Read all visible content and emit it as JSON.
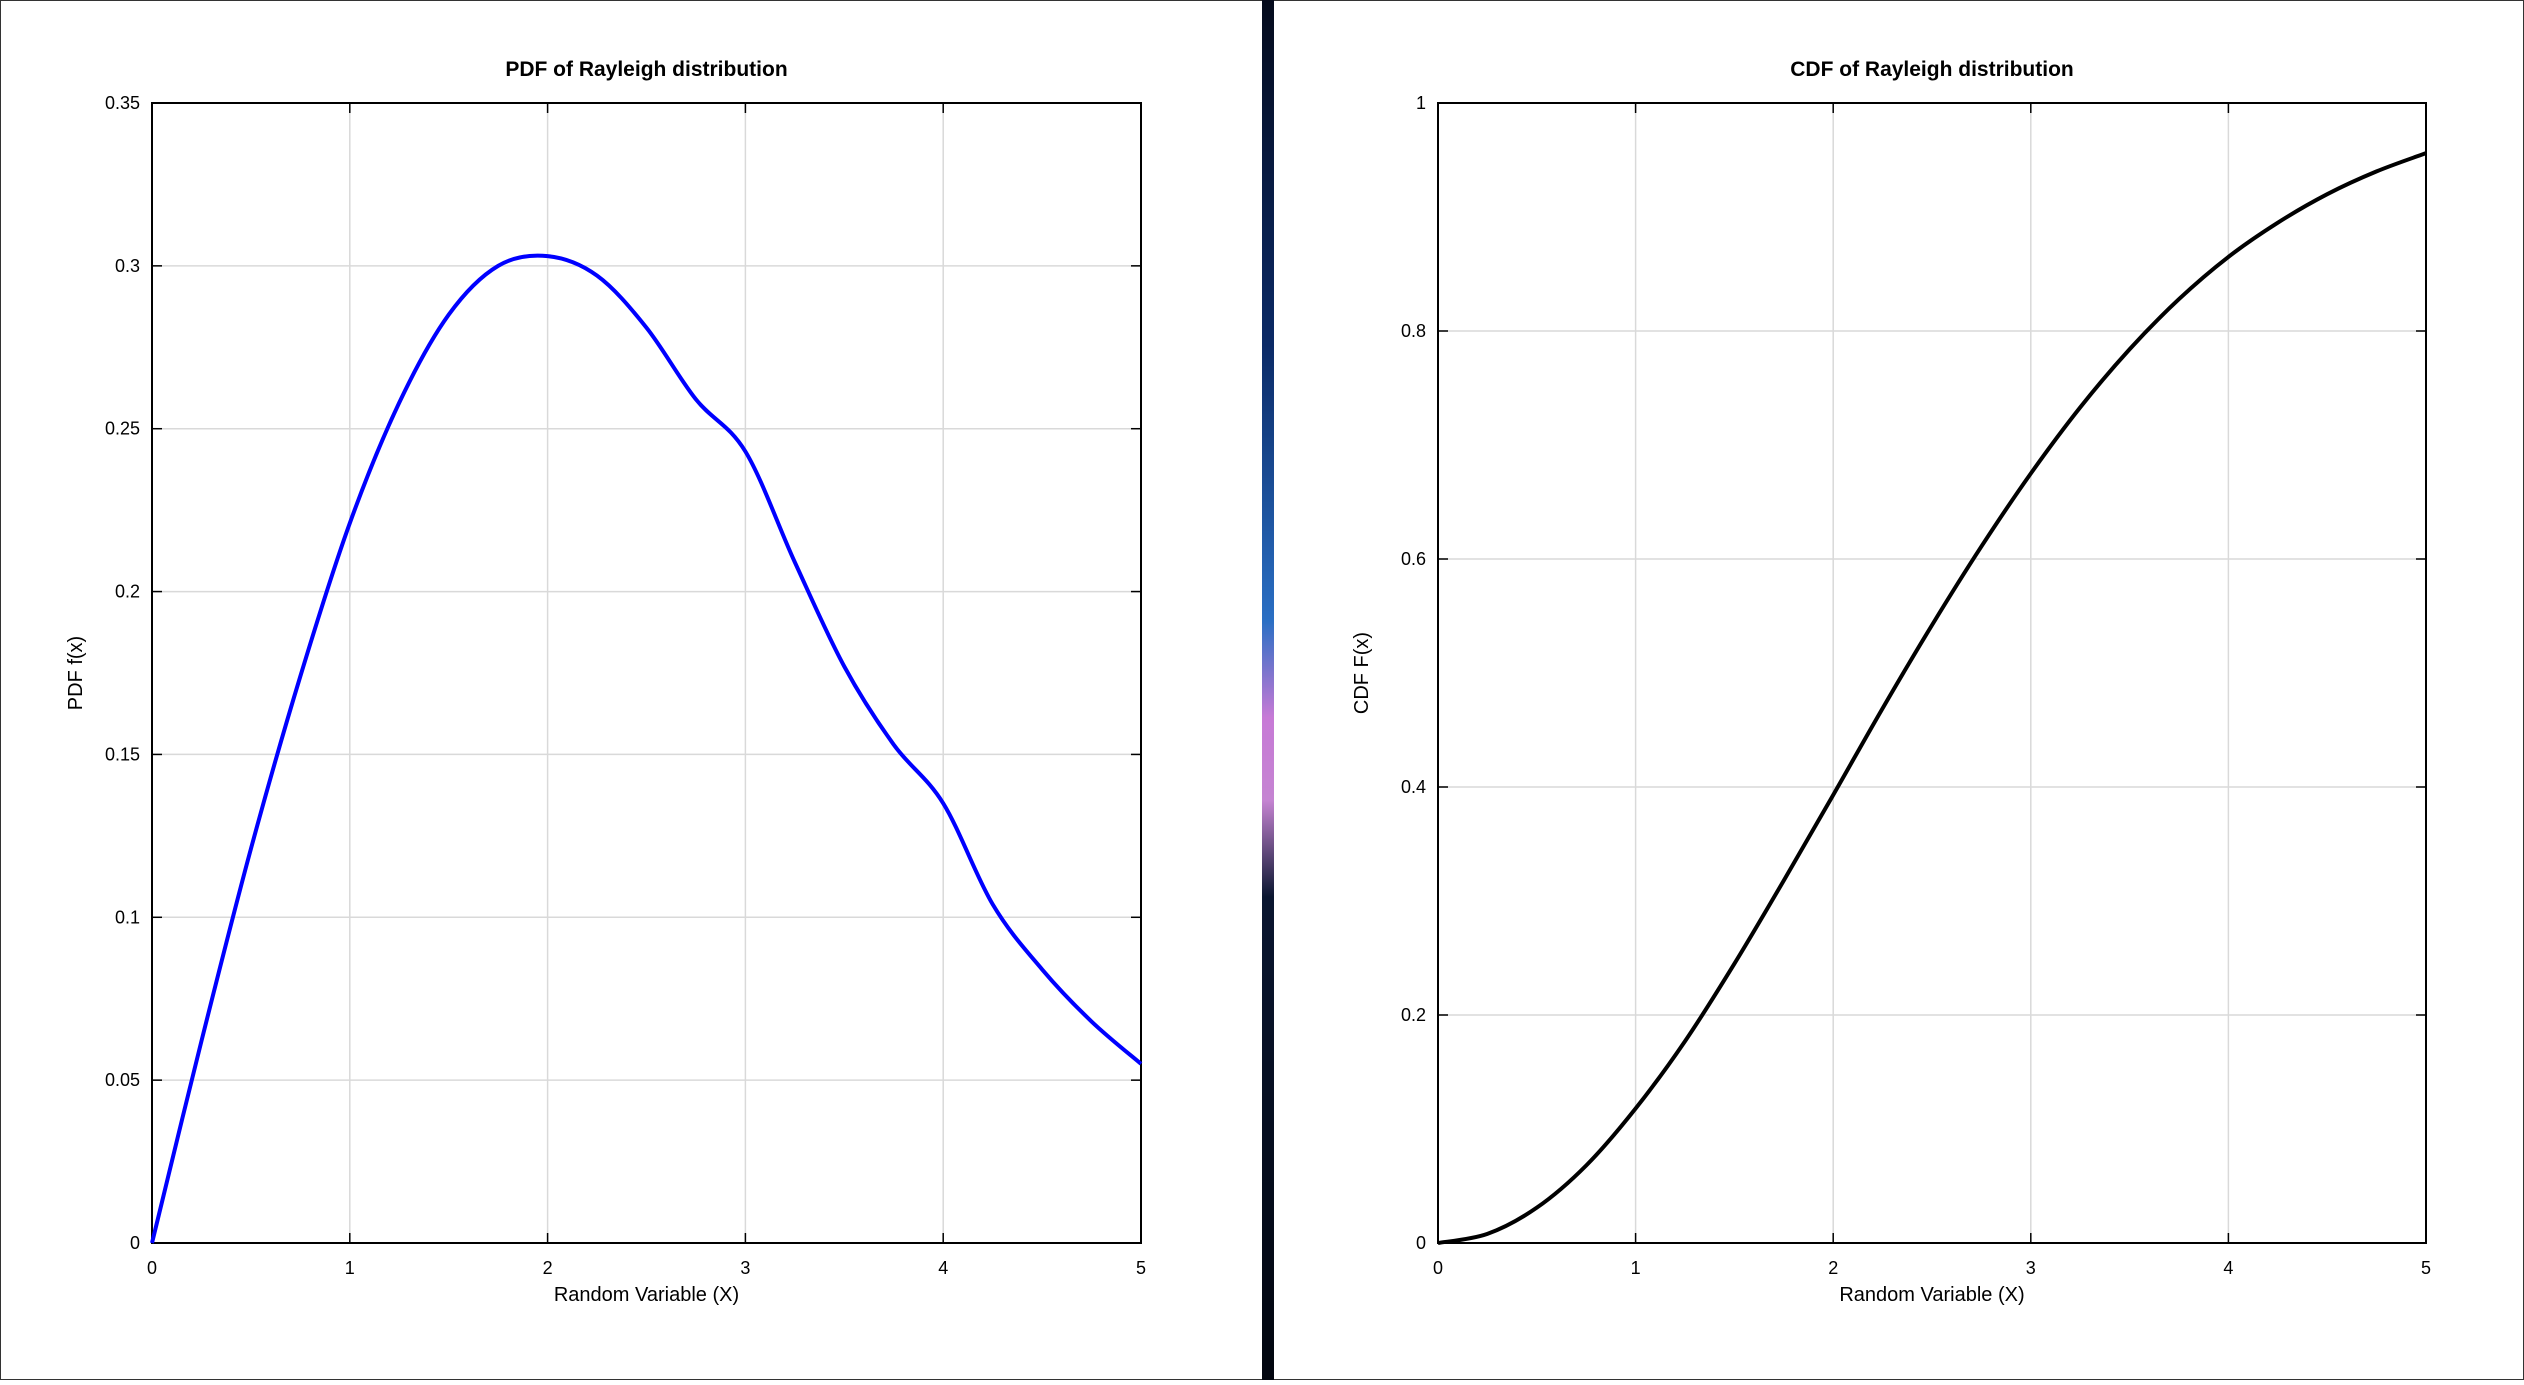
{
  "colors": {
    "pdf_line": "#0000ff",
    "cdf_line": "#000000",
    "grid": "#d9d9d9",
    "axes": "#000000",
    "divider": "#040a18"
  },
  "chart_data": [
    {
      "type": "line",
      "title": "PDF of Rayleigh distribution",
      "xlabel": "Random Variable (X)",
      "ylabel": "PDF f(x)",
      "xlim": [
        0,
        5
      ],
      "ylim": [
        0,
        0.35
      ],
      "xticks": [
        "0",
        "1",
        "2",
        "3",
        "4",
        "5"
      ],
      "yticks": [
        "0",
        "0.05",
        "0.1",
        "0.15",
        "0.2",
        "0.25",
        "0.3",
        "0.35"
      ],
      "grid": true,
      "legend": "none",
      "series": [
        {
          "color": "#0000ff",
          "x": [
            0,
            0.25,
            0.5,
            0.75,
            1,
            1.25,
            1.5,
            1.75,
            2,
            2.25,
            2.5,
            2.75,
            3,
            3.25,
            3.5,
            3.75,
            4,
            4.25,
            4.5,
            4.75,
            5
          ],
          "y": [
            0,
            0.062,
            0.121,
            0.174,
            0.221,
            0.258,
            0.285,
            0.3,
            0.303,
            0.297,
            0.281,
            0.259,
            0.243,
            0.209,
            0.177,
            0.153,
            0.135,
            0.104,
            0.084,
            0.068,
            0.055
          ]
        }
      ]
    },
    {
      "type": "line",
      "title": "CDF of Rayleigh distribution",
      "xlabel": "Random Variable (X)",
      "ylabel": "CDF F(x)",
      "xlim": [
        0,
        5
      ],
      "ylim": [
        0,
        1
      ],
      "xticks": [
        "0",
        "1",
        "2",
        "3",
        "4",
        "5"
      ],
      "yticks": [
        "0",
        "0.2",
        "0.4",
        "0.6",
        "0.8",
        "1"
      ],
      "grid": true,
      "legend": "none",
      "series": [
        {
          "color": "#000000",
          "x": [
            0,
            0.25,
            0.5,
            0.75,
            1,
            1.25,
            1.5,
            1.75,
            2,
            2.25,
            2.5,
            2.75,
            3,
            3.25,
            3.5,
            3.75,
            4,
            4.25,
            4.5,
            4.75,
            5
          ],
          "y": [
            0,
            0.008,
            0.031,
            0.068,
            0.118,
            0.177,
            0.245,
            0.318,
            0.393,
            0.469,
            0.542,
            0.611,
            0.675,
            0.733,
            0.784,
            0.828,
            0.865,
            0.895,
            0.92,
            0.94,
            0.956
          ]
        }
      ]
    }
  ]
}
